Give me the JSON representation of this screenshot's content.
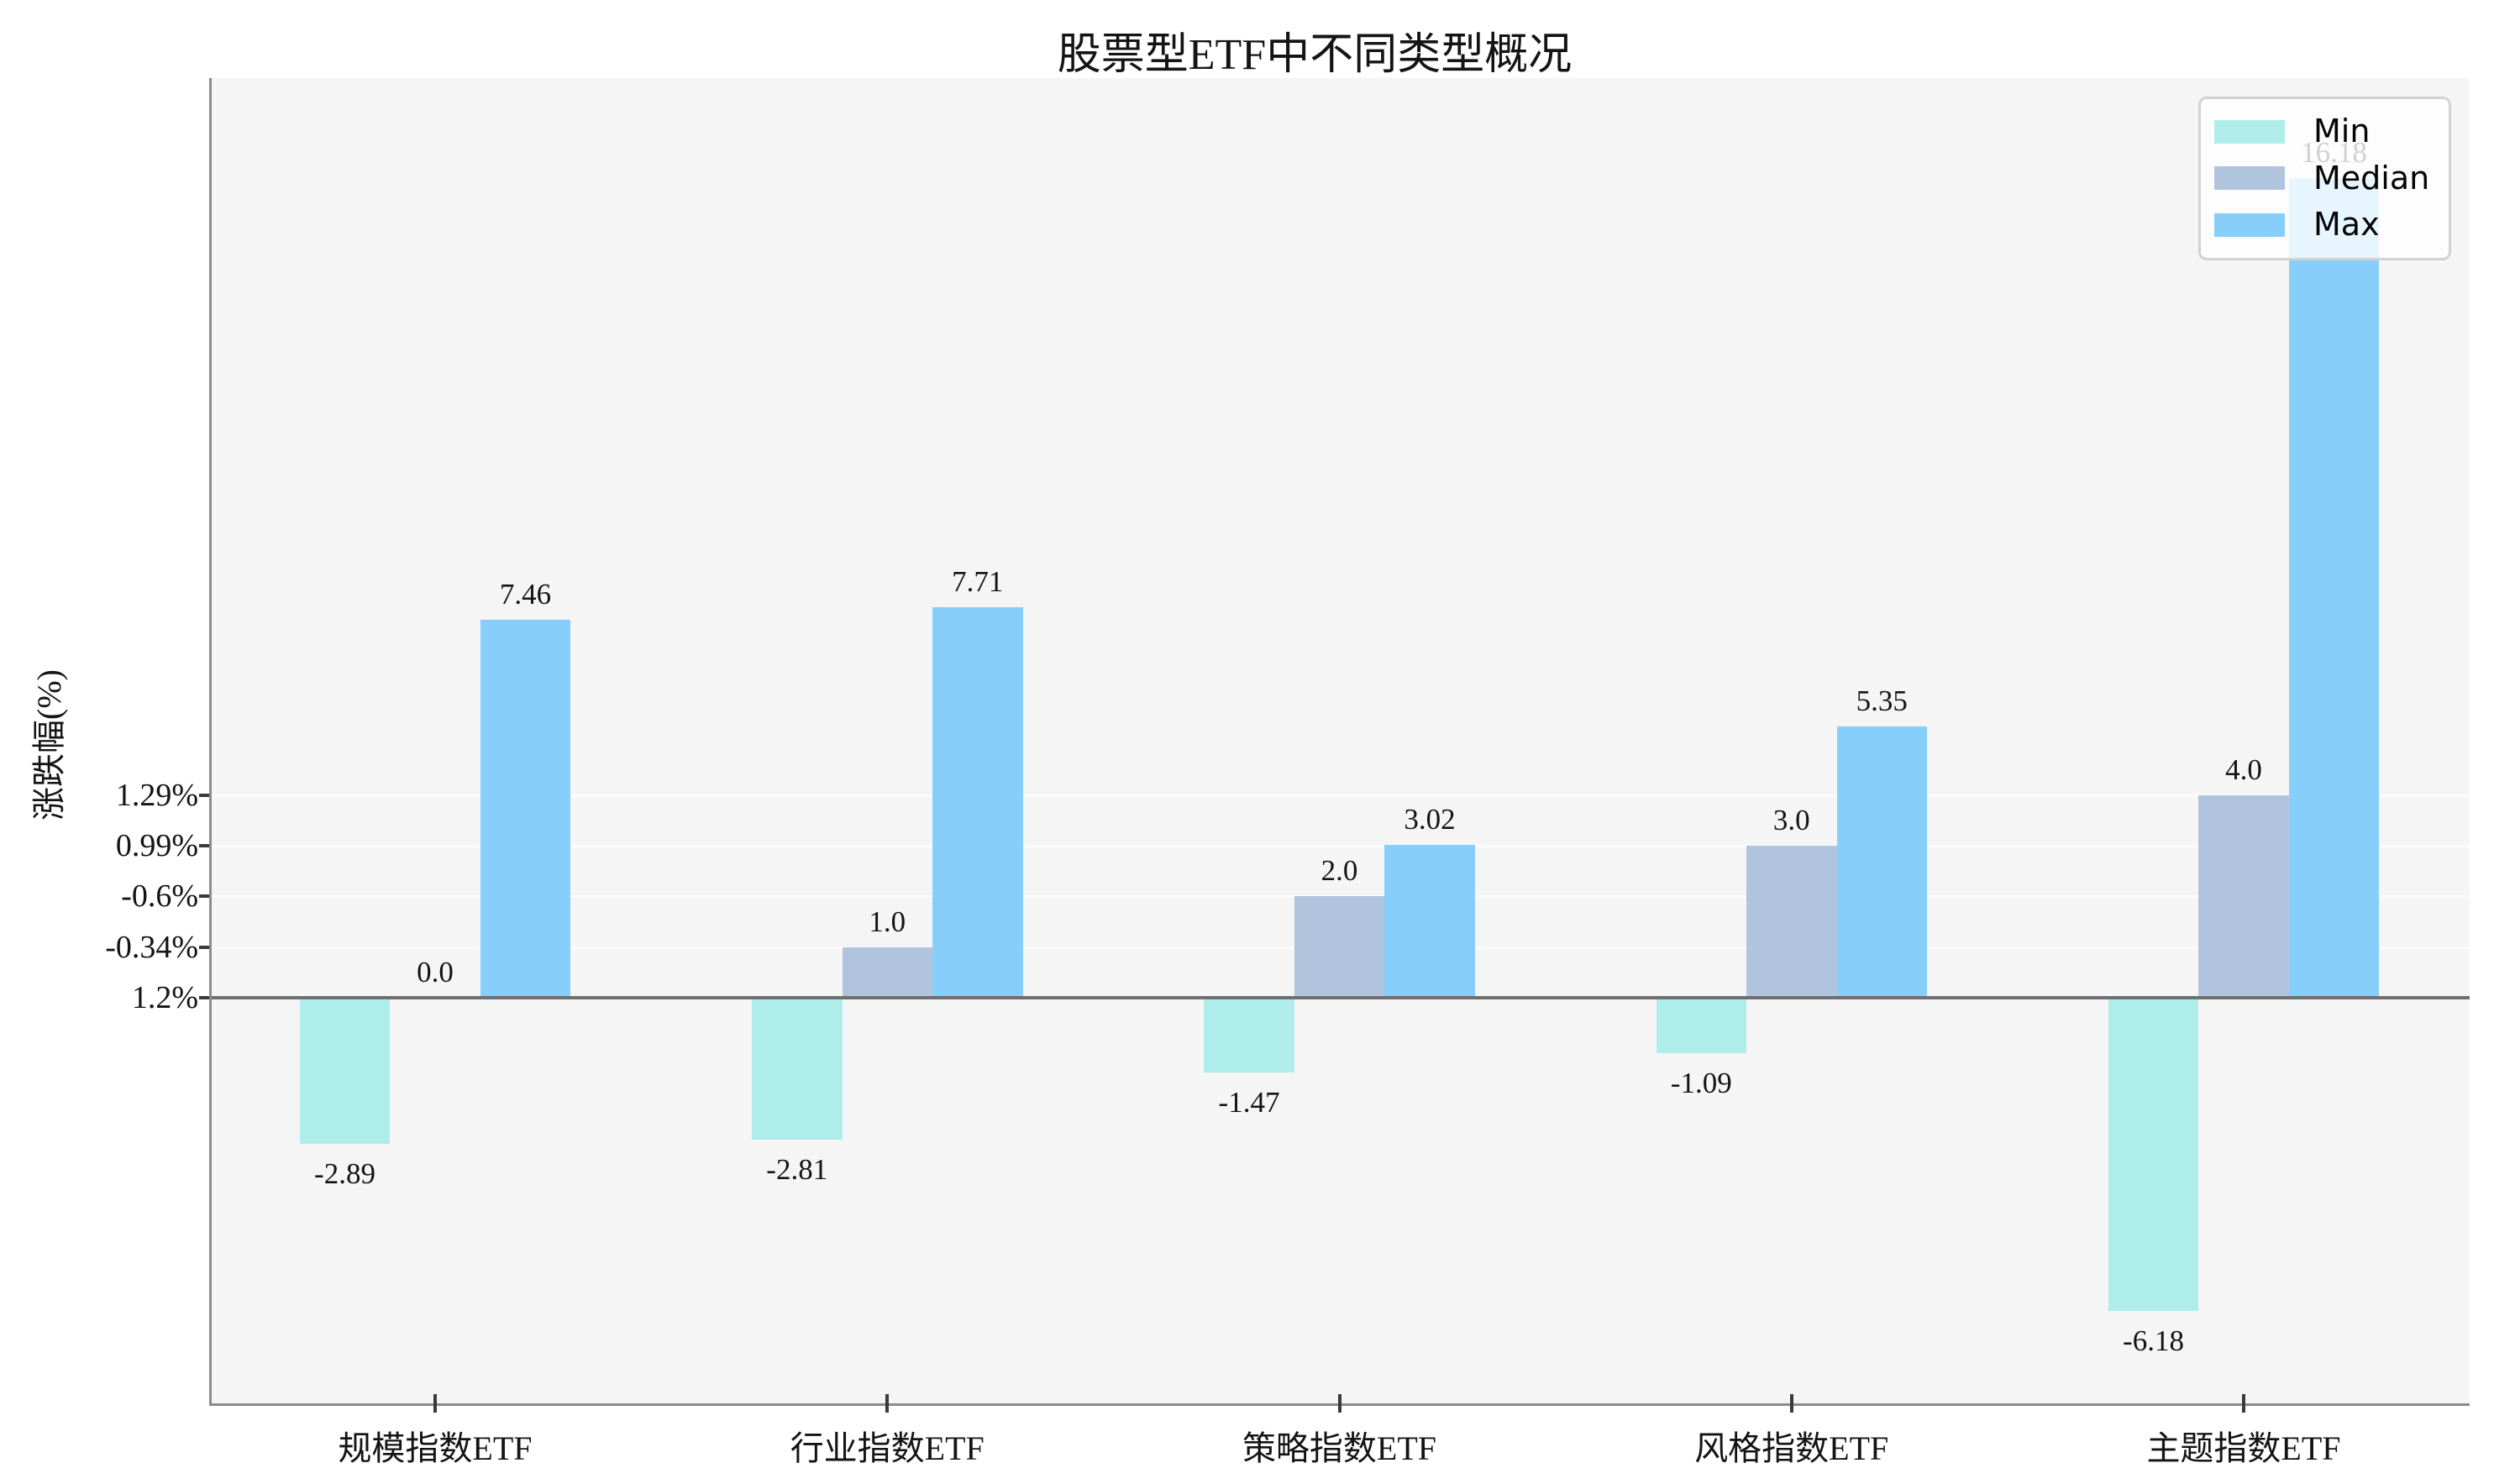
{
  "title": "股票型ETF中不同类型概况",
  "y_axis": {
    "label": "涨跌幅(%)",
    "tick_labels": [
      "1.29%",
      "0.99%",
      "-0.6%",
      "-0.34%",
      "1.2%"
    ],
    "tick_values": [
      4,
      3,
      2,
      1,
      0
    ]
  },
  "chart_data": {
    "type": "bar",
    "title": "股票型ETF中不同类型概况",
    "categories": [
      "规模指数ETF",
      "行业指数ETF",
      "策略指数ETF",
      "风格指数ETF",
      "主题指数ETF"
    ],
    "series": [
      {
        "name": "Min",
        "color": "#AEEDE9",
        "values": [
          -2.89,
          -2.81,
          -1.47,
          -1.09,
          -6.18
        ],
        "labels": [
          "-2.89",
          "-2.81",
          "-1.47",
          "-1.09",
          "-6.18"
        ]
      },
      {
        "name": "Median",
        "color": "#B0C4DE",
        "values": [
          0.0,
          1.0,
          2.0,
          3.0,
          4.0
        ],
        "labels": [
          "0.0",
          "1.0",
          "2.0",
          "3.0",
          "4.0"
        ]
      },
      {
        "name": "Max",
        "color": "#87CEFA",
        "values": [
          7.46,
          7.71,
          3.02,
          5.35,
          16.18
        ],
        "labels": [
          "7.46",
          "7.71",
          "3.02",
          "5.35",
          "16.18"
        ]
      }
    ],
    "xlabel": "",
    "ylabel": "涨跌幅(%)",
    "ytick_labels": [
      "1.29%",
      "0.99%",
      "-0.6%",
      "-0.34%",
      "1.2%"
    ],
    "ytick_values": [
      4,
      3,
      2,
      1,
      0
    ],
    "ylim": [
      -8.06,
      18.16
    ],
    "grid": "horizontal",
    "legend": {
      "position": "upper right",
      "entries": [
        "Min",
        "Median",
        "Max"
      ]
    }
  },
  "colors": {
    "plot_bg": "#F5F5F5",
    "fig_bg": "#FFFFFF",
    "gridline": "#FCFCFC",
    "zero_line": "#6F6F6F",
    "spine": "#8C8C8C",
    "tick": "#3A3A3A",
    "text": "#141414",
    "legend_border": "#D2D2D2"
  }
}
